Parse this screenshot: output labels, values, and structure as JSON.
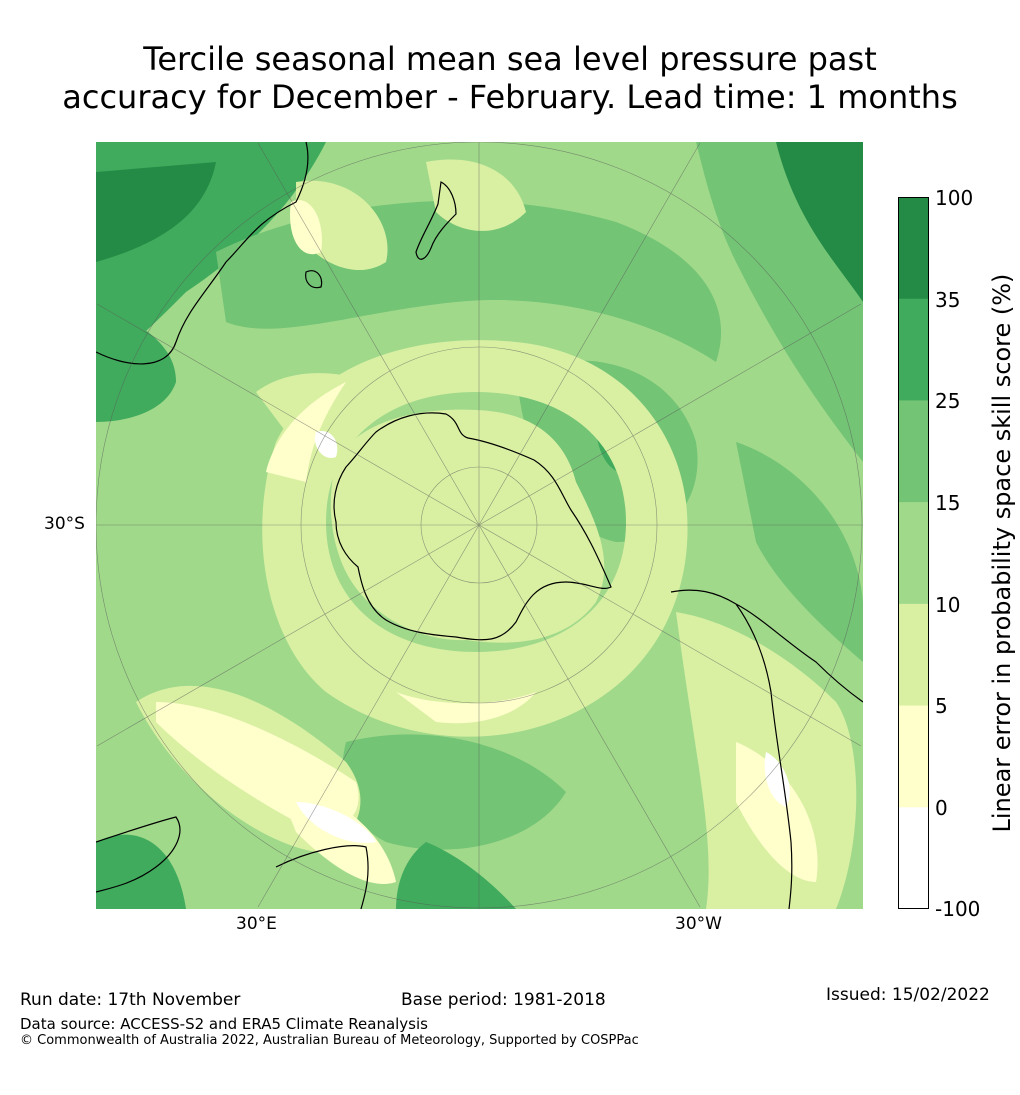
{
  "title": {
    "line1": "Tercile seasonal mean sea level pressure past",
    "line2": "accuracy for December - February. Lead time: 1 months"
  },
  "map": {
    "projection": "south polar stereographic",
    "lat_labels": [
      "30°S"
    ],
    "lon_labels": [
      "30°E",
      "30°W"
    ]
  },
  "colorbar": {
    "label": "Linear error in probability space skill score (%)",
    "ticks": [
      "100",
      "35",
      "25",
      "15",
      "10",
      "5",
      "0",
      "-100"
    ],
    "bins": [
      {
        "range": "35 to 100",
        "color": "#238b45"
      },
      {
        "range": "25 to 35",
        "color": "#41ab5d"
      },
      {
        "range": "15 to 25",
        "color": "#74c476"
      },
      {
        "range": "10 to 15",
        "color": "#a1d98b"
      },
      {
        "range": "5 to 10",
        "color": "#d9f0a3"
      },
      {
        "range": "0 to 5",
        "color": "#ffffcc"
      },
      {
        "range": "-100 to 0",
        "color": "#ffffff"
      }
    ]
  },
  "footer": {
    "run_date": "Run date: 17th November",
    "base_period": "Base period: 1981-2018",
    "issued": "Issued: 15/02/2022",
    "data_source": "Data source: ACCESS-S2 and ERA5 Climate Reanalysis",
    "copyright": "© Commonwealth of Australia 2022, Australian Bureau of Meteorology, Supported by COSPPac"
  }
}
